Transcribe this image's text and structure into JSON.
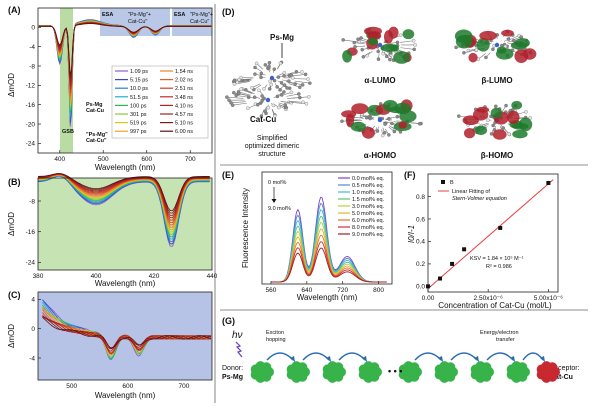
{
  "colors": {
    "gsb_green": "#b9dca2",
    "esa_blue": "#b9c8e6",
    "panelB_bg": "#c6e3b3",
    "panelC_bg": "#b6c3e6",
    "fit_red": "#e84040",
    "cat_red": "#c8282f",
    "ps_green": "#37b34a",
    "arrow_blue": "#2b6cb0"
  },
  "panelA": {
    "tag": "(A)",
    "ylabel": "ΔmOD",
    "xlabel": "Wavelength (nm)",
    "yticks": [
      "0",
      "-4",
      "-8",
      "-12",
      "-16",
      "-20",
      "-24"
    ],
    "xticks": [
      "400",
      "500",
      "600",
      "700"
    ],
    "esa1": "ESA",
    "esa1_sub": "\"Ps-Mg\"+\nCat-Cu\"",
    "esa1_sub_a": "\"Ps-Mg\"+",
    "esa1_sub_b": "Cat-Cu\"",
    "esa2": "ESA",
    "esa2_sub_a": "\"Ps-Mg\"+",
    "esa2_sub_b": "Cat-Cu\"",
    "gsb": "GSB",
    "annot1_a": "Ps-Mg",
    "annot1_b": "Cat-Cu",
    "annot2_a": "\"Ps-Mg\"",
    "annot2_b": "Cat-Cu\"",
    "legend_col1": [
      "1.09 ps",
      "5.15 ps",
      "10.0 ps",
      "51.5 ps",
      "100 ps",
      "301 ps",
      "519 ps",
      "997 ps"
    ],
    "legend_col2": [
      "1.54 ns",
      "2.02 ns",
      "2.51 ns",
      "3.48 ns",
      "4.10 ns",
      "4.57 ns",
      "5.10 ns",
      "6.00 ns"
    ],
    "legend_colors1": [
      "#8a5fd0",
      "#3a46c8",
      "#1f7ee0",
      "#1fb0c8",
      "#28b850",
      "#8cc83c",
      "#d8c818",
      "#f0a020"
    ],
    "legend_colors2": [
      "#f08028",
      "#e85a28",
      "#d83828",
      "#c82828",
      "#b02020",
      "#982020",
      "#801818",
      "#5a1010"
    ]
  },
  "panelB": {
    "tag": "(B)",
    "ylabel": "ΔmOD",
    "xlabel": "Wavelength (nm)",
    "yticks": [
      "-8",
      "-16",
      "-24"
    ],
    "xticks": [
      "380",
      "400",
      "420",
      "440"
    ]
  },
  "panelC": {
    "tag": "(C)",
    "ylabel": "ΔmOD",
    "xlabel": "Wavelength (nm)",
    "yticks": [
      "4",
      "0",
      "-4"
    ],
    "xticks": [
      "500",
      "600",
      "700"
    ]
  },
  "panelD": {
    "tag": "(D)",
    "ps_mg": "Ps-Mg",
    "cat_cu": "Cat-Cu",
    "caption_a": "Simplified",
    "caption_b": "optimized dimeric",
    "caption_c": "structure",
    "alpha_lumo": "α-LUMO",
    "beta_lumo": "β-LUMO",
    "alpha_homo": "α-HOMO",
    "beta_homo": "β-HOMO"
  },
  "panelE": {
    "tag": "(E)",
    "ylabel": "Fluorescence Intensity",
    "xlabel": "Wavelength (nm)",
    "xticks": [
      "560",
      "640",
      "720",
      "800"
    ],
    "top_label": "0 mol%",
    "bottom_label": "9.0 mol%",
    "legend": [
      "0.0 mol% eq.",
      "0.5 mol% eq.",
      "1.0 mol% eq.",
      "1.5 mol% eq.",
      "3.0 mol% eq.",
      "5.0 mol% eq.",
      "6.0 mol% eq.",
      "8.0 mol% eq.",
      "9.0 mol% eq."
    ],
    "legend_colors": [
      "#7b45c8",
      "#4a8ad8",
      "#3cc0d0",
      "#5cc870",
      "#b8d040",
      "#e8b030",
      "#e87030",
      "#d03030",
      "#a02020"
    ]
  },
  "panelF": {
    "tag": "(F)",
    "ylabel": "I0/I-1",
    "xlabel": "Concentration of Cat-Cu (mol/L)",
    "xticks": [
      "0.00",
      "2.50x10⁻⁶",
      "5.00x10⁻⁶"
    ],
    "yticks": [
      "0.0",
      "0.2",
      "0.4",
      "0.6",
      "0.8"
    ],
    "legend_b": "B",
    "legend_fit_a": "Linear Fitting of",
    "legend_fit_b": "Stern-Volmer equation",
    "ksv": "KSV = 1.84 × 10⁵ M⁻¹",
    "r2": "R² = 0.986"
  },
  "panelG": {
    "tag": "(G)",
    "hv": "hν",
    "exciton_a": "Exciton",
    "exciton_b": "hopping",
    "transfer_a": "Energy/electron",
    "transfer_b": "transfer",
    "donor_a": "Donor:",
    "donor_b": "Ps-Mg",
    "acceptor_a": "Acceptor:",
    "acceptor_b": "Cat-Cu",
    "dots": "• • •"
  },
  "chart_data": [
    {
      "type": "line",
      "panel": "F",
      "title": "",
      "xlabel": "Concentration of Cat-Cu (mol/L)",
      "ylabel": "I0/I-1",
      "x": [
        0.0,
        5e-07,
        1e-06,
        1.5e-06,
        3e-06,
        5e-06
      ],
      "series": [
        {
          "name": "B",
          "values": [
            0.0,
            0.07,
            0.2,
            0.33,
            0.52,
            0.92
          ]
        }
      ],
      "xlim": [
        0,
        5.4e-06
      ],
      "ylim": [
        -0.05,
        1.0
      ]
    }
  ]
}
